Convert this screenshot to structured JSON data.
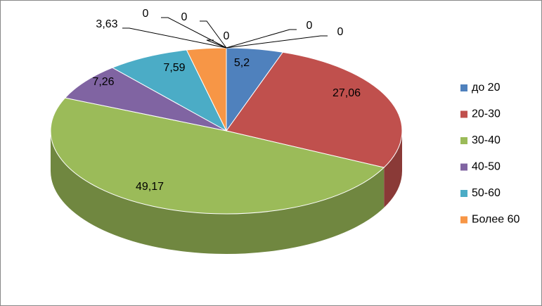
{
  "chart_data": {
    "type": "pie3d",
    "categories": [
      "до 20",
      "20-30",
      "30-40",
      "40-50",
      "50-60",
      "Более 60",
      null,
      null,
      null,
      null,
      null
    ],
    "values": [
      5.2,
      27.06,
      49.17,
      7.26,
      7.59,
      3.63,
      0,
      0,
      0,
      0,
      0
    ],
    "value_labels": [
      "5,2",
      "27,06",
      "49,17",
      "7,26",
      "7,59",
      "3,63",
      "0",
      "0",
      "0",
      "0",
      "0"
    ],
    "colors": [
      "#4f81bd",
      "#c0504d",
      "#9bbb59",
      "#8064a2",
      "#4bacc6",
      "#f79646",
      null,
      null,
      null,
      null,
      null
    ],
    "legend": "right"
  }
}
